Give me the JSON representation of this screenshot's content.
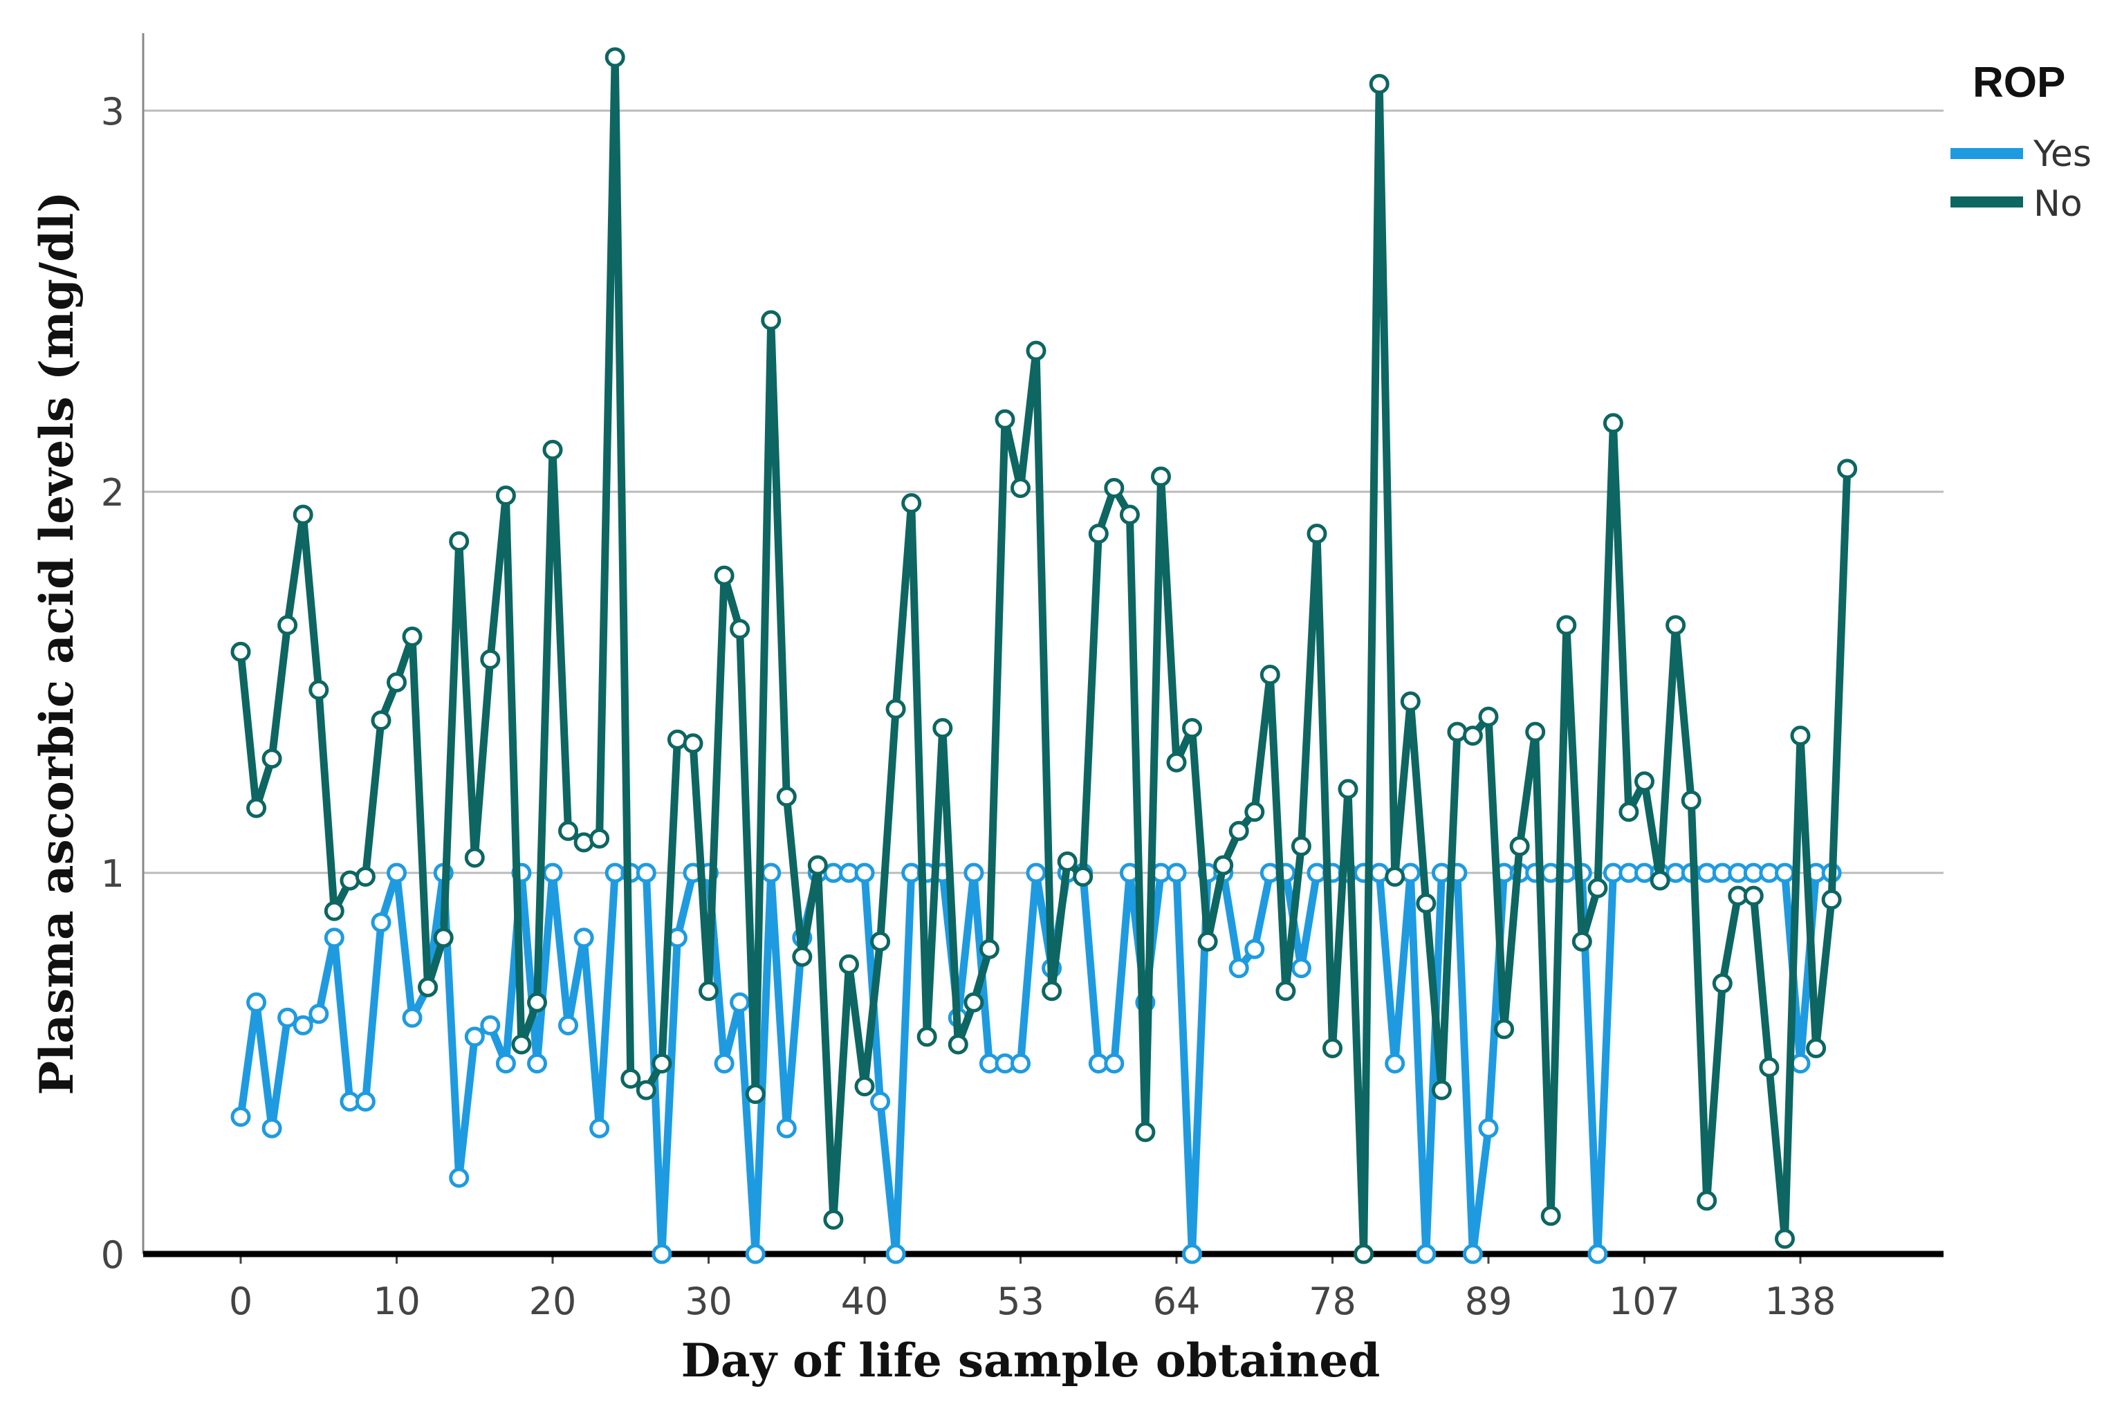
{
  "chart_data": {
    "type": "line",
    "title": "",
    "xlabel": "Day of life sample obtained",
    "ylabel": "Plasma ascorbic acid levels (mg/dl)",
    "ylim": [
      0,
      3.2
    ],
    "yticks": [
      0,
      1,
      2,
      3
    ],
    "x_tick_labels": [
      "0",
      "10",
      "20",
      "30",
      "40",
      "53",
      "64",
      "78",
      "89",
      "107",
      "138"
    ],
    "legend": {
      "title": "ROP",
      "position": "top-right"
    },
    "grid": "horizontal",
    "colors": {
      "yes": "#1e9be0",
      "no": "#0d6661"
    },
    "series": [
      {
        "name": "Yes",
        "values": [
          0.36,
          0.66,
          0.33,
          0.62,
          0.6,
          0.63,
          0.83,
          0.4,
          0.4,
          0.87,
          1.0,
          0.62,
          0.7,
          1.0,
          0.2,
          0.57,
          0.6,
          0.5,
          1.0,
          0.5,
          1.0,
          0.6,
          0.83,
          0.33,
          1.0,
          1.0,
          1.0,
          0.0,
          0.83,
          1.0,
          1.0,
          0.5,
          0.66,
          0.0,
          1.0,
          0.33,
          0.83,
          1.0,
          1.0,
          1.0,
          1.0,
          0.4,
          0.0,
          1.0,
          1.0,
          1.0,
          0.62,
          1.0,
          0.5,
          0.5,
          0.5,
          1.0,
          0.75,
          1.0,
          1.0,
          0.5,
          0.5,
          1.0,
          0.66,
          1.0,
          1.0,
          0.0,
          1.0,
          1.0,
          0.75,
          0.8,
          1.0,
          1.0,
          0.75,
          1.0,
          1.0,
          1.0,
          1.0,
          1.0,
          0.5,
          1.0,
          0.0,
          1.0,
          1.0,
          0.0,
          0.33,
          1.0,
          1.0,
          1.0,
          1.0,
          1.0,
          1.0,
          0.0,
          1.0,
          1.0,
          1.0,
          1.0,
          1.0,
          1.0,
          1.0,
          1.0,
          1.0,
          1.0,
          1.0,
          1.0,
          0.5,
          1.0,
          1.0
        ]
      },
      {
        "name": "No",
        "values": [
          1.58,
          1.17,
          1.3,
          1.65,
          1.94,
          1.48,
          0.9,
          0.98,
          0.99,
          1.4,
          1.5,
          1.62,
          0.7,
          0.83,
          1.87,
          1.04,
          1.56,
          1.99,
          0.55,
          0.66,
          2.11,
          1.11,
          1.08,
          1.09,
          3.14,
          0.46,
          0.43,
          0.5,
          1.35,
          1.34,
          0.69,
          1.78,
          1.64,
          0.42,
          2.45,
          1.2,
          0.78,
          1.02,
          0.09,
          0.76,
          0.44,
          0.82,
          1.43,
          1.97,
          0.57,
          1.38,
          0.55,
          0.66,
          0.8,
          2.19,
          2.01,
          2.37,
          0.69,
          1.03,
          0.99,
          1.89,
          2.01,
          1.94,
          0.32,
          2.04,
          1.29,
          1.38,
          0.82,
          1.02,
          1.11,
          1.16,
          1.52,
          0.69,
          1.07,
          1.89,
          0.54,
          1.22,
          0.0,
          3.07,
          0.99,
          1.45,
          0.92,
          0.43,
          1.37,
          1.36,
          1.41,
          0.59,
          1.07,
          1.37,
          0.1,
          1.65,
          0.82,
          0.96,
          2.18,
          1.16,
          1.24,
          0.98,
          1.65,
          1.19,
          0.14,
          0.71,
          0.94,
          0.94,
          0.49,
          0.04,
          1.36,
          0.54,
          0.93,
          2.06
        ]
      }
    ]
  }
}
